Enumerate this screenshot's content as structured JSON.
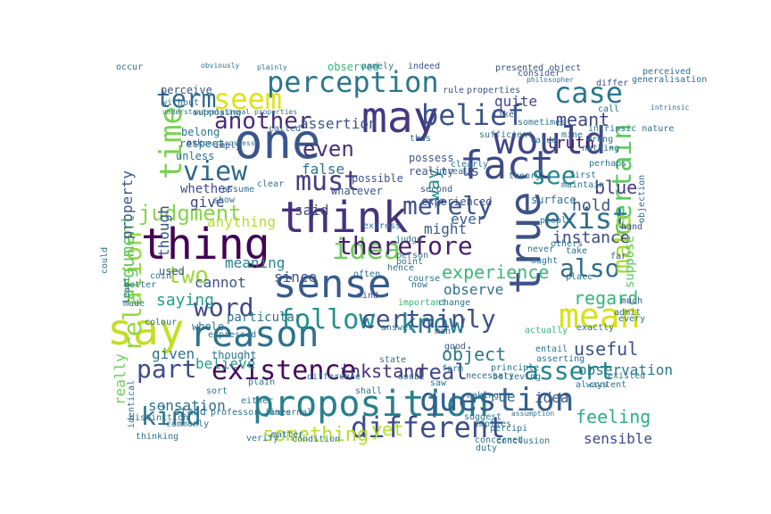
{
  "words": [
    {
      "text": "think",
      "color": "#46327e"
    },
    {
      "text": "thing",
      "color": "#440154"
    },
    {
      "text": "sense",
      "color": "#365c8d"
    },
    {
      "text": "true",
      "color": "#3b528b"
    },
    {
      "text": "one",
      "color": "#39568c"
    },
    {
      "text": "may",
      "color": "#443983"
    },
    {
      "text": "fact",
      "color": "#3e4a89"
    },
    {
      "text": "would",
      "color": "#404688"
    },
    {
      "text": "proposition",
      "color": "#27808e"
    },
    {
      "text": "say",
      "color": "#c2df23"
    },
    {
      "text": "reason",
      "color": "#2c728e"
    },
    {
      "text": "seem",
      "color": "#dde318"
    },
    {
      "text": "perception",
      "color": "#2a788e"
    },
    {
      "text": "question",
      "color": "#355f8d"
    },
    {
      "text": "mean",
      "color": "#d8e219"
    },
    {
      "text": "idea",
      "color": "#6ece58"
    },
    {
      "text": "existence",
      "color": "#46085c"
    },
    {
      "text": "belief",
      "color": "#3a548c"
    },
    {
      "text": "certain",
      "color": "#5ec962"
    },
    {
      "text": "exist",
      "color": "#2e6f8e"
    },
    {
      "text": "different",
      "color": "#3d4e8a"
    },
    {
      "text": "case",
      "color": "#2a788e"
    },
    {
      "text": "word",
      "color": "#3e4989"
    },
    {
      "text": "follow",
      "color": "#20928c"
    },
    {
      "text": "know",
      "color": "#26828e"
    },
    {
      "text": "view",
      "color": "#31688e"
    },
    {
      "text": "time",
      "color": "#7ad151"
    },
    {
      "text": "therefore",
      "color": "#481f70"
    },
    {
      "text": "certainly",
      "color": "#3b528b"
    },
    {
      "text": "kind",
      "color": "#2c728e"
    },
    {
      "text": "must",
      "color": "#433e85"
    },
    {
      "text": "part",
      "color": "#3e4c8a"
    },
    {
      "text": "relation",
      "color": "#93d741"
    },
    {
      "text": "merely",
      "color": "#3b528b"
    },
    {
      "text": "also",
      "color": "#2f6c8e"
    },
    {
      "text": "make",
      "color": "#a5db36"
    },
    {
      "text": "two",
      "color": "#9bd93c"
    },
    {
      "text": "term",
      "color": "#31688e"
    },
    {
      "text": "another",
      "color": "#472d7b"
    },
    {
      "text": "judgment",
      "color": "#86d549"
    },
    {
      "text": "meant",
      "color": "#3f4788"
    },
    {
      "text": "assert",
      "color": "#25858e"
    },
    {
      "text": "real",
      "color": "#3e4c8a"
    },
    {
      "text": "see",
      "color": "#24868e"
    },
    {
      "text": "even",
      "color": "#472f7d"
    },
    {
      "text": "feeling",
      "color": "#2ab07f"
    },
    {
      "text": "argument",
      "color": "#5ec962"
    },
    {
      "text": "something",
      "color": "#b5de2b"
    },
    {
      "text": "experience",
      "color": "#38b977"
    },
    {
      "text": "way",
      "color": "#21918c"
    },
    {
      "text": "regard",
      "color": "#35b779"
    },
    {
      "text": "saying",
      "color": "#1f9e89"
    },
    {
      "text": "sensation",
      "color": "#2c728e"
    },
    {
      "text": "truth",
      "color": "#481769"
    },
    {
      "text": "instance",
      "color": "#3f4788"
    },
    {
      "text": "hold",
      "color": "#3c508b"
    },
    {
      "text": "blue",
      "color": "#453882"
    },
    {
      "text": "useful",
      "color": "#3b528b"
    },
    {
      "text": "inkstand",
      "color": "#46327e"
    },
    {
      "text": "object",
      "color": "#2a788e"
    },
    {
      "text": "given",
      "color": "#2c728e"
    },
    {
      "text": "sensible",
      "color": "#3e4a89"
    },
    {
      "text": "observation",
      "color": "#2a788e"
    },
    {
      "text": "suppose",
      "color": "#5ec962"
    },
    {
      "text": "really",
      "color": "#6ece58"
    },
    {
      "text": "property",
      "color": "#3b528b"
    },
    {
      "text": "said",
      "color": "#3f4889"
    },
    {
      "text": "yet",
      "color": "#b5de2b"
    },
    {
      "text": "cannot",
      "color": "#3b528b"
    },
    {
      "text": "observe",
      "color": "#2c728e"
    },
    {
      "text": "believe",
      "color": "#1f9e89"
    },
    {
      "text": "meaning",
      "color": "#25838e"
    },
    {
      "text": "since",
      "color": "#3b528b"
    },
    {
      "text": "give",
      "color": "#414487"
    },
    {
      "text": "might",
      "color": "#365c8d"
    },
    {
      "text": "false",
      "color": "#2c728e"
    },
    {
      "text": "anything",
      "color": "#b5de2b"
    },
    {
      "text": "quite",
      "color": "#3e4989"
    },
    {
      "text": "assertion",
      "color": "#3b528b"
    },
    {
      "text": "though",
      "color": "#3b528b"
    },
    {
      "text": "whether",
      "color": "#3e4c8a"
    },
    {
      "text": "ever",
      "color": "#34618d"
    },
    {
      "text": "idea",
      "color": "#39568c"
    },
    {
      "text": "true",
      "color": "#31688e"
    },
    {
      "text": "us",
      "color": "#3b528b"
    },
    {
      "text": "particular",
      "color": "#2c728e"
    },
    {
      "text": "thought",
      "color": "#2c728e"
    },
    {
      "text": "whole",
      "color": "#2c728e"
    },
    {
      "text": "perceive",
      "color": "#3b528b"
    },
    {
      "text": "used",
      "color": "#3b528b"
    },
    {
      "text": "stand",
      "color": "#2c728e"
    },
    {
      "text": "belong",
      "color": "#2c728e"
    },
    {
      "text": "respect",
      "color": "#2c728e"
    },
    {
      "text": "unless",
      "color": "#2c728e"
    },
    {
      "text": "possess",
      "color": "#3b528b"
    },
    {
      "text": "reality",
      "color": "#3b528b"
    },
    {
      "text": "experienced",
      "color": "#3b528b"
    },
    {
      "text": "whatever",
      "color": "#3b528b"
    },
    {
      "text": "possible",
      "color": "#3b528b"
    },
    {
      "text": "surface",
      "color": "#2c728e"
    },
    {
      "text": "observed",
      "color": "#35b779"
    },
    {
      "text": "presented object",
      "color": "#3b528b"
    },
    {
      "text": "like",
      "color": "#3b528b"
    },
    {
      "text": "sometimes",
      "color": "#2c728e"
    },
    {
      "text": "call",
      "color": "#2c728e"
    },
    {
      "text": "first",
      "color": "#2c728e"
    },
    {
      "text": "course",
      "color": "#2c728e"
    },
    {
      "text": "important",
      "color": "#35b779"
    },
    {
      "text": "mind",
      "color": "#3b528b"
    },
    {
      "text": "people",
      "color": "#2c728e"
    },
    {
      "text": "others",
      "color": "#2c728e"
    },
    {
      "text": "far",
      "color": "#3b528b"
    },
    {
      "text": "admit",
      "color": "#2c728e"
    },
    {
      "text": "always",
      "color": "#2c728e"
    },
    {
      "text": "content",
      "color": "#2c728e"
    },
    {
      "text": "existed",
      "color": "#2c728e"
    },
    {
      "text": "doubt",
      "color": "#2c728e"
    },
    {
      "text": "shall",
      "color": "#2c728e"
    },
    {
      "text": "difference",
      "color": "#2c728e"
    },
    {
      "text": "internal",
      "color": "#2c728e"
    },
    {
      "text": "matter",
      "color": "#2c728e"
    },
    {
      "text": "verify",
      "color": "#2c728e"
    },
    {
      "text": "thinking",
      "color": "#2c728e"
    },
    {
      "text": "either",
      "color": "#2c728e"
    },
    {
      "text": "man",
      "color": "#3b528b"
    },
    {
      "text": "good",
      "color": "#3b528b"
    },
    {
      "text": "actually",
      "color": "#35b779"
    },
    {
      "text": "every",
      "color": "#2c728e"
    },
    {
      "text": "much",
      "color": "#3b528b"
    },
    {
      "text": "hand",
      "color": "#3b528b"
    },
    {
      "text": "perceived",
      "color": "#2c728e"
    },
    {
      "text": "generalisation",
      "color": "#2c728e"
    },
    {
      "text": "occur",
      "color": "#2c728e"
    },
    {
      "text": "least",
      "color": "#2c728e"
    },
    {
      "text": "could",
      "color": "#2c728e"
    },
    {
      "text": "supposing",
      "color": "#2c728e"
    },
    {
      "text": "without",
      "color": "#2c728e"
    },
    {
      "text": "ask",
      "color": "#3b528b"
    },
    {
      "text": "imply",
      "color": "#3b528b"
    },
    {
      "text": "consider",
      "color": "#3b528b"
    },
    {
      "text": "differ",
      "color": "#3b528b"
    },
    {
      "text": "rule",
      "color": "#3b528b"
    },
    {
      "text": "properties",
      "color": "#3b528b"
    },
    {
      "text": "indeed",
      "color": "#3b528b"
    },
    {
      "text": "second",
      "color": "#3b528b"
    },
    {
      "text": "mere",
      "color": "#3b528b"
    },
    {
      "text": "judge",
      "color": "#2c728e"
    },
    {
      "text": "person",
      "color": "#2c728e"
    },
    {
      "text": "express",
      "color": "#2c728e"
    },
    {
      "text": "assume",
      "color": "#2c728e"
    },
    {
      "text": "theory",
      "color": "#2c728e"
    },
    {
      "text": "ought",
      "color": "#2c728e"
    },
    {
      "text": "never",
      "color": "#2c728e"
    },
    {
      "text": "better",
      "color": "#2c728e"
    },
    {
      "text": "coin",
      "color": "#2c728e"
    },
    {
      "text": "made",
      "color": "#2c728e"
    },
    {
      "text": "colour",
      "color": "#2c728e"
    },
    {
      "text": "expressed",
      "color": "#2c728e"
    },
    {
      "text": "commonly",
      "color": "#2c728e"
    },
    {
      "text": "professor james",
      "color": "#2c728e"
    },
    {
      "text": "answer",
      "color": "#2c728e"
    },
    {
      "text": "asserting",
      "color": "#2c728e"
    },
    {
      "text": "entail",
      "color": "#2c728e"
    },
    {
      "text": "duty",
      "color": "#2c728e"
    },
    {
      "text": "concerned",
      "color": "#2c728e"
    },
    {
      "text": "implies",
      "color": "#2c728e"
    },
    {
      "text": "percipi",
      "color": "#2c728e"
    },
    {
      "text": "conclusion",
      "color": "#2c728e"
    },
    {
      "text": "condition",
      "color": "#2c728e"
    },
    {
      "text": "distinction",
      "color": "#2c728e"
    },
    {
      "text": "identical",
      "color": "#2c728e"
    },
    {
      "text": "value",
      "color": "#2c728e"
    },
    {
      "text": "wrong",
      "color": "#2c728e"
    },
    {
      "text": "intrinsic nature",
      "color": "#2c728e"
    },
    {
      "text": "perhaps",
      "color": "#2c728e"
    },
    {
      "text": "nothing",
      "color": "#2c728e"
    },
    {
      "text": "maintain",
      "color": "#2c728e"
    },
    {
      "text": "take",
      "color": "#2c728e"
    },
    {
      "text": "place",
      "color": "#2c728e"
    },
    {
      "text": "exactly",
      "color": "#2c728e"
    },
    {
      "text": "believing",
      "color": "#2c728e"
    },
    {
      "text": "making",
      "color": "#2c728e"
    },
    {
      "text": "suggest",
      "color": "#2c728e"
    },
    {
      "text": "principle",
      "color": "#2c728e"
    },
    {
      "text": "form",
      "color": "#2c728e"
    },
    {
      "text": "saw",
      "color": "#2c728e"
    },
    {
      "text": "change",
      "color": "#2c728e"
    },
    {
      "text": "state",
      "color": "#2c728e"
    },
    {
      "text": "sort",
      "color": "#2c728e"
    },
    {
      "text": "plain",
      "color": "#2c728e"
    },
    {
      "text": "now",
      "color": "#2c728e"
    },
    {
      "text": "often",
      "color": "#2c728e"
    },
    {
      "text": "hence",
      "color": "#2c728e"
    },
    {
      "text": "necessary",
      "color": "#2c728e"
    },
    {
      "text": "show",
      "color": "#2c728e"
    },
    {
      "text": "point",
      "color": "#2c728e"
    },
    {
      "text": "thus",
      "color": "#2c728e"
    },
    {
      "text": "mine",
      "color": "#2c728e"
    },
    {
      "text": "clearly",
      "color": "#2c728e"
    },
    {
      "text": "sufficient",
      "color": "#2c728e"
    },
    {
      "text": "unreal",
      "color": "#2c728e"
    },
    {
      "text": "obviously",
      "color": "#2c728e"
    },
    {
      "text": "plainly",
      "color": "#2c728e"
    },
    {
      "text": "namely",
      "color": "#2c728e"
    },
    {
      "text": "called",
      "color": "#2c728e"
    },
    {
      "text": "clear",
      "color": "#2c728e"
    },
    {
      "text": "consciousness",
      "color": "#2c728e"
    },
    {
      "text": "relational properties",
      "color": "#2c728e"
    },
    {
      "text": "understand",
      "color": "#2c728e"
    },
    {
      "text": "assumption",
      "color": "#2c728e"
    },
    {
      "text": "objection",
      "color": "#2c728e"
    },
    {
      "text": "philosopher",
      "color": "#2c728e"
    },
    {
      "text": "intrinsic",
      "color": "#2c728e"
    },
    {
      "text": "mr bradley",
      "color": "#2c728e"
    },
    {
      "text": "certain",
      "color": "#2c728e"
    },
    {
      "text": "equivalent",
      "color": "#2c728e"
    },
    {
      "text": "character",
      "color": "#2c728e"
    },
    {
      "text": "something",
      "color": "#2c728e"
    },
    {
      "text": "many",
      "color": "#2c728e"
    },
    {
      "text": "idealist",
      "color": "#2c728e"
    }
  ]
}
